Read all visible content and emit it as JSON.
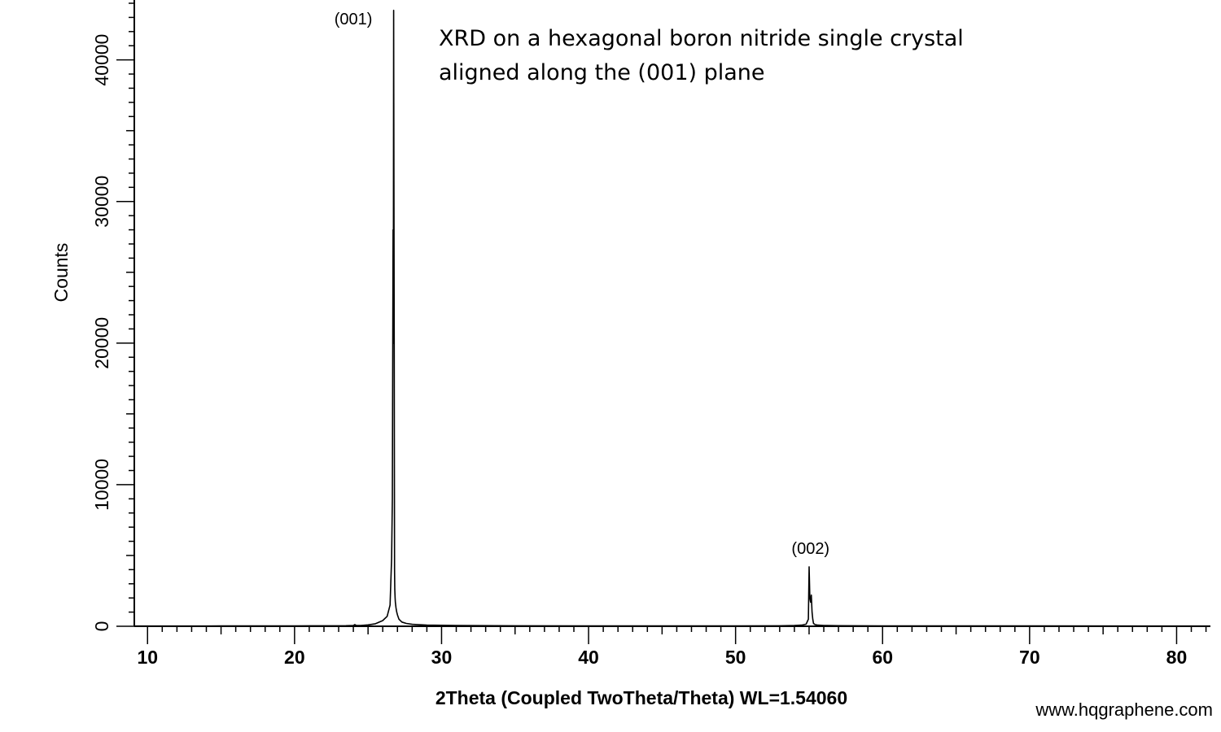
{
  "chart_data": {
    "type": "line",
    "title_lines": [
      "XRD on a hexagonal boron nitride single crystal",
      "aligned along the (001) plane"
    ],
    "xlabel": "2Theta (Coupled TwoTheta/Theta) WL=1.54060",
    "ylabel": "Counts",
    "xlim": [
      9.1,
      82.3
    ],
    "ylim": [
      0,
      44000
    ],
    "x_ticks": [
      10,
      20,
      30,
      40,
      50,
      60,
      70,
      80
    ],
    "y_ticks": [
      0,
      10000,
      20000,
      30000,
      40000
    ],
    "x_minor_step": 1,
    "y_minor_step": 1000,
    "grid": false,
    "line_color": "#000000",
    "series": [
      {
        "x": [
          9.1,
          15,
          20,
          23.5,
          24.0,
          24.1,
          24.2,
          24.3,
          24.5,
          25.0,
          25.5,
          26.0,
          26.3,
          26.5,
          26.6,
          26.65,
          26.7,
          26.72,
          26.74,
          26.76,
          26.78,
          26.8,
          26.82,
          26.84,
          26.86,
          26.9,
          26.95,
          27.0,
          27.1,
          27.3,
          27.6,
          28.0,
          29.0,
          31.0,
          35.0,
          40.0,
          45.0,
          50.0,
          53.0,
          54.0,
          54.5,
          54.8,
          54.95,
          55.0,
          55.05,
          55.1,
          55.15,
          55.2,
          55.25,
          55.3,
          55.4,
          55.6,
          56.0,
          57.0,
          60.0,
          70.0,
          80.0,
          82.3
        ],
        "y": [
          20,
          25,
          30,
          40,
          60,
          120,
          60,
          50,
          60,
          100,
          180,
          400,
          700,
          1500,
          4800,
          9000,
          28000,
          20000,
          43500,
          32700,
          20000,
          4000,
          2600,
          2000,
          1700,
          1300,
          1000,
          800,
          500,
          300,
          200,
          140,
          80,
          50,
          35,
          30,
          28,
          30,
          35,
          50,
          80,
          150,
          500,
          4200,
          2000,
          1700,
          2200,
          1000,
          500,
          200,
          120,
          80,
          60,
          40,
          30,
          25,
          20,
          20
        ]
      }
    ],
    "annotations": [
      {
        "text": "(001)",
        "x": 24.0,
        "y": 42500
      },
      {
        "text": "(002)",
        "x": 55.1,
        "y": 5100
      }
    ]
  },
  "watermark": "www.hqgraphene.com"
}
